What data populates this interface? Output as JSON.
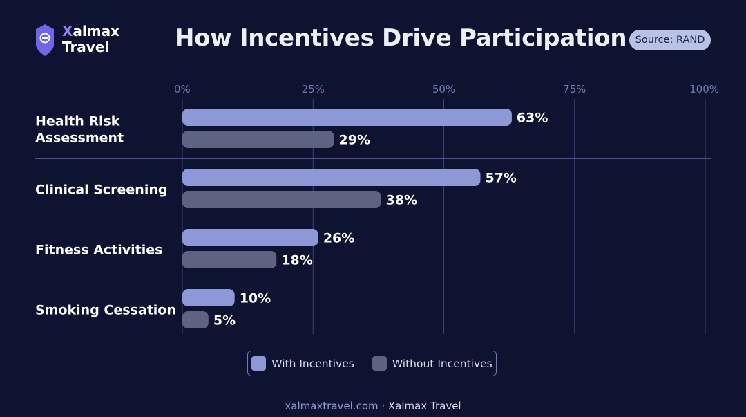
{
  "brand": {
    "name_accent": "X",
    "name_rest": "almax",
    "name_line2": "Travel"
  },
  "header": {
    "title": "How Incentives Drive Participation",
    "source": "Source: RAND"
  },
  "colors": {
    "with": "#8e98d6",
    "without": "#5d6381",
    "background": "#0d1330",
    "grid": "#3a4478"
  },
  "chart_data": {
    "type": "bar",
    "orientation": "horizontal",
    "title": "How Incentives Drive Participation",
    "categories": [
      [
        "Health Risk",
        "Assessment"
      ],
      [
        "Clinical Screening"
      ],
      [
        "Fitness Activities"
      ],
      [
        "Smoking Cessation"
      ]
    ],
    "series": [
      {
        "name": "With Incentives",
        "values": [
          63,
          57,
          26,
          10
        ],
        "labels": [
          "63%",
          "57%",
          "26%",
          "10%"
        ]
      },
      {
        "name": "Without Incentives",
        "values": [
          29,
          38,
          18,
          5
        ],
        "labels": [
          "29%",
          "38%",
          "18%",
          "5%"
        ]
      }
    ],
    "x_ticks": [
      "0%",
      "25%",
      "50%",
      "75%",
      "100%"
    ],
    "xlim": [
      0,
      100
    ],
    "xlabel": "",
    "ylabel": "",
    "grid": true,
    "legend_position": "bottom"
  },
  "legend": {
    "with_label": "With Incentives",
    "without_label": "Without Incentives"
  },
  "footer": {
    "url": "xalmaxtravel.com",
    "separator": " · ",
    "brand": "Xalmax Travel"
  }
}
